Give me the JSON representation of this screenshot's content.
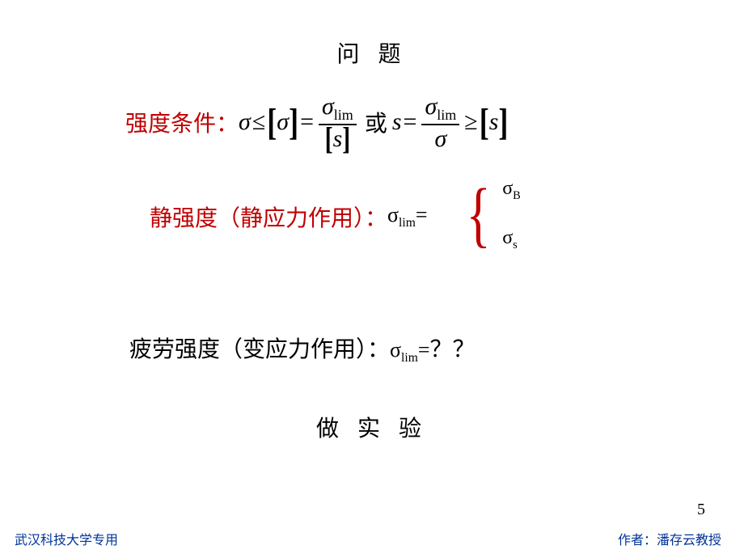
{
  "title": "问 题",
  "row1": {
    "label": "强度条件：",
    "sigma": "σ",
    "le": "≤",
    "lbr": "[",
    "rbr": "]",
    "eq": "=",
    "lim": "lim",
    "s": "s",
    "huo": "或",
    "ge": "≥"
  },
  "row2": {
    "label": "静强度（静应力作用）：",
    "sigma_lim": "σ",
    "lim_sub": "lim",
    "eq": "="
  },
  "brace": {
    "top": "σ",
    "top_sub": "B",
    "bot": "σ",
    "bot_sub": "s"
  },
  "row3": {
    "label": "疲劳强度（变应力作用）：",
    "sigma": "σ",
    "lim_sub": "lim",
    "eq": "=",
    "qq": "？？"
  },
  "row4": "做 实 验",
  "page_num": "5",
  "footer_left": "武汉科技大学专用",
  "footer_right": "作者：潘存云教授",
  "colors": {
    "red": "#c00000",
    "blue": "#003399",
    "black": "#000000",
    "bg": "#ffffff"
  }
}
